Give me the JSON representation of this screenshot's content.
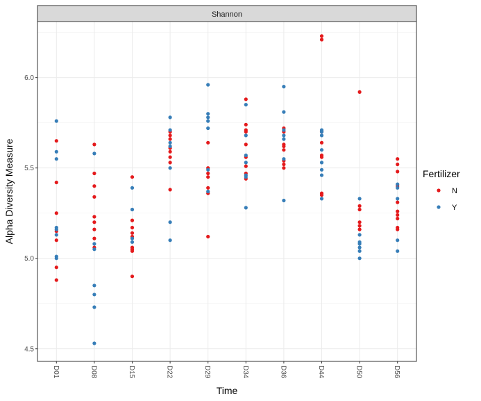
{
  "chart_data": {
    "type": "scatter",
    "facet_label": "Shannon",
    "xlabel": "Time",
    "ylabel": "Alpha Diversity Measure",
    "categories": [
      "D01",
      "D08",
      "D15",
      "D22",
      "D29",
      "D34",
      "D36",
      "D44",
      "D50",
      "D56"
    ],
    "ylim": [
      4.43,
      6.31
    ],
    "yticks": [
      4.5,
      5.0,
      5.5,
      6.0
    ],
    "ytick_labels": [
      "4.5",
      "5.0",
      "5.5",
      "6.0"
    ],
    "grid": true,
    "legend": {
      "title": "Fertilizer",
      "position": "right"
    },
    "series": [
      {
        "name": "N",
        "color": "#e41a1c",
        "points": [
          [
            "D01",
            5.65
          ],
          [
            "D01",
            5.42
          ],
          [
            "D01",
            5.25
          ],
          [
            "D01",
            5.15
          ],
          [
            "D01",
            5.1
          ],
          [
            "D01",
            4.95
          ],
          [
            "D01",
            4.88
          ],
          [
            "D08",
            5.63
          ],
          [
            "D08",
            5.47
          ],
          [
            "D08",
            5.4
          ],
          [
            "D08",
            5.34
          ],
          [
            "D08",
            5.23
          ],
          [
            "D08",
            5.2
          ],
          [
            "D08",
            5.16
          ],
          [
            "D08",
            5.11
          ],
          [
            "D08",
            5.06
          ],
          [
            "D15",
            5.45
          ],
          [
            "D15",
            5.21
          ],
          [
            "D15",
            5.17
          ],
          [
            "D15",
            5.14
          ],
          [
            "D15",
            5.12
          ],
          [
            "D15",
            5.06
          ],
          [
            "D15",
            5.05
          ],
          [
            "D15",
            5.04
          ],
          [
            "D15",
            4.9
          ],
          [
            "D22",
            5.7
          ],
          [
            "D22",
            5.68
          ],
          [
            "D22",
            5.66
          ],
          [
            "D22",
            5.61
          ],
          [
            "D22",
            5.59
          ],
          [
            "D22",
            5.56
          ],
          [
            "D22",
            5.53
          ],
          [
            "D22",
            5.38
          ],
          [
            "D29",
            5.64
          ],
          [
            "D29",
            5.5
          ],
          [
            "D29",
            5.47
          ],
          [
            "D29",
            5.45
          ],
          [
            "D29",
            5.39
          ],
          [
            "D29",
            5.36
          ],
          [
            "D29",
            5.12
          ],
          [
            "D34",
            5.88
          ],
          [
            "D34",
            5.74
          ],
          [
            "D34",
            5.71
          ],
          [
            "D34",
            5.7
          ],
          [
            "D34",
            5.63
          ],
          [
            "D34",
            5.56
          ],
          [
            "D34",
            5.51
          ],
          [
            "D34",
            5.47
          ],
          [
            "D34",
            5.44
          ],
          [
            "D36",
            5.72
          ],
          [
            "D36",
            5.7
          ],
          [
            "D36",
            5.63
          ],
          [
            "D36",
            5.62
          ],
          [
            "D36",
            5.6
          ],
          [
            "D36",
            5.54
          ],
          [
            "D36",
            5.52
          ],
          [
            "D36",
            5.5
          ],
          [
            "D44",
            6.23
          ],
          [
            "D44",
            6.21
          ],
          [
            "D44",
            5.7
          ],
          [
            "D44",
            5.64
          ],
          [
            "D44",
            5.57
          ],
          [
            "D44",
            5.56
          ],
          [
            "D44",
            5.36
          ],
          [
            "D44",
            5.35
          ],
          [
            "D50",
            5.92
          ],
          [
            "D50",
            5.29
          ],
          [
            "D50",
            5.27
          ],
          [
            "D50",
            5.2
          ],
          [
            "D50",
            5.18
          ],
          [
            "D50",
            5.16
          ],
          [
            "D56",
            5.55
          ],
          [
            "D56",
            5.52
          ],
          [
            "D56",
            5.48
          ],
          [
            "D56",
            5.4
          ],
          [
            "D56",
            5.31
          ],
          [
            "D56",
            5.26
          ],
          [
            "D56",
            5.24
          ],
          [
            "D56",
            5.22
          ],
          [
            "D56",
            5.17
          ],
          [
            "D56",
            5.16
          ]
        ]
      },
      {
        "name": "Y",
        "color": "#377eb8",
        "points": [
          [
            "D01",
            5.76
          ],
          [
            "D01",
            5.59
          ],
          [
            "D01",
            5.55
          ],
          [
            "D01",
            5.17
          ],
          [
            "D01",
            5.16
          ],
          [
            "D01",
            5.13
          ],
          [
            "D01",
            5.01
          ],
          [
            "D01",
            5.0
          ],
          [
            "D08",
            5.58
          ],
          [
            "D08",
            5.08
          ],
          [
            "D08",
            5.05
          ],
          [
            "D08",
            4.85
          ],
          [
            "D08",
            4.8
          ],
          [
            "D08",
            4.73
          ],
          [
            "D08",
            4.53
          ],
          [
            "D15",
            5.39
          ],
          [
            "D15",
            5.27
          ],
          [
            "D15",
            5.11
          ],
          [
            "D15",
            5.09
          ],
          [
            "D22",
            5.78
          ],
          [
            "D22",
            5.71
          ],
          [
            "D22",
            5.64
          ],
          [
            "D22",
            5.62
          ],
          [
            "D22",
            5.5
          ],
          [
            "D22",
            5.2
          ],
          [
            "D22",
            5.1
          ],
          [
            "D29",
            5.96
          ],
          [
            "D29",
            5.8
          ],
          [
            "D29",
            5.78
          ],
          [
            "D29",
            5.76
          ],
          [
            "D29",
            5.72
          ],
          [
            "D29",
            5.49
          ],
          [
            "D29",
            5.37
          ],
          [
            "D34",
            5.85
          ],
          [
            "D34",
            5.68
          ],
          [
            "D34",
            5.57
          ],
          [
            "D34",
            5.53
          ],
          [
            "D34",
            5.46
          ],
          [
            "D34",
            5.45
          ],
          [
            "D34",
            5.28
          ],
          [
            "D36",
            5.95
          ],
          [
            "D36",
            5.81
          ],
          [
            "D36",
            5.71
          ],
          [
            "D36",
            5.68
          ],
          [
            "D36",
            5.66
          ],
          [
            "D36",
            5.55
          ],
          [
            "D36",
            5.32
          ],
          [
            "D44",
            5.71
          ],
          [
            "D44",
            5.7
          ],
          [
            "D44",
            5.68
          ],
          [
            "D44",
            5.6
          ],
          [
            "D44",
            5.53
          ],
          [
            "D44",
            5.49
          ],
          [
            "D44",
            5.46
          ],
          [
            "D44",
            5.33
          ],
          [
            "D50",
            5.33
          ],
          [
            "D50",
            5.13
          ],
          [
            "D50",
            5.09
          ],
          [
            "D50",
            5.08
          ],
          [
            "D50",
            5.06
          ],
          [
            "D50",
            5.04
          ],
          [
            "D50",
            5.0
          ],
          [
            "D56",
            5.41
          ],
          [
            "D56",
            5.39
          ],
          [
            "D56",
            5.33
          ],
          [
            "D56",
            5.1
          ],
          [
            "D56",
            5.04
          ]
        ]
      }
    ]
  }
}
